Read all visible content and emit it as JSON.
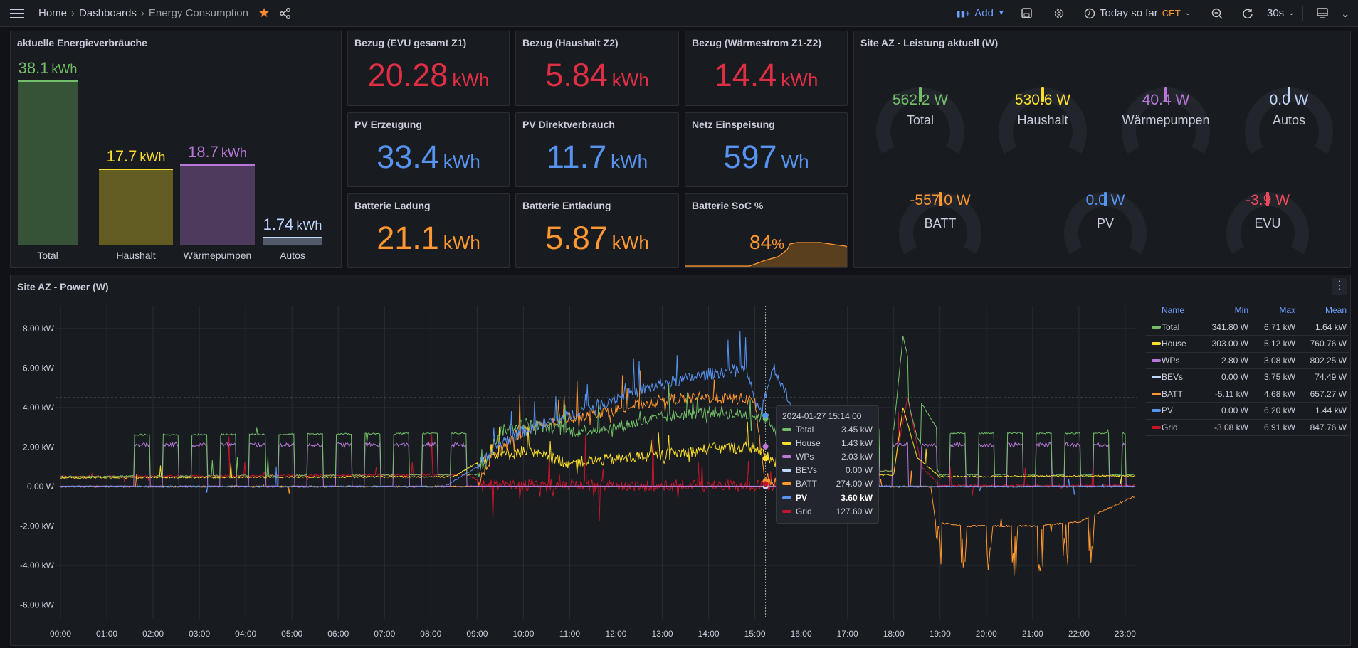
{
  "topbar": {
    "breadcrumb": [
      "Home",
      "Dashboards",
      "Energy Consumption"
    ],
    "add_label": "Add",
    "time_range": "Today so far",
    "timezone": "CET",
    "refresh": "30s"
  },
  "bar_panel": {
    "title": "aktuelle Energieverbräuche",
    "bars": [
      {
        "label": "Total",
        "value": "38.1",
        "unit": "kWh",
        "color": "#73bf69",
        "num": 38.1
      },
      {
        "label": "Haushalt",
        "value": "17.7",
        "unit": "kWh",
        "color": "#fade2a",
        "num": 17.7
      },
      {
        "label": "Wärmepumpen",
        "value": "18.7",
        "unit": "kWh",
        "color": "#b877d9",
        "num": 18.7
      },
      {
        "label": "Autos",
        "value": "1.74",
        "unit": "kWh",
        "color": "#c0d8ff",
        "num": 1.74
      }
    ],
    "max": 38.1
  },
  "stats": [
    {
      "title": "Bezug (EVU gesamt Z1)",
      "value": "20.28",
      "unit": "kWh",
      "color": "#e02f44"
    },
    {
      "title": "Bezug (Haushalt Z2)",
      "value": "5.84",
      "unit": "kWh",
      "color": "#e02f44"
    },
    {
      "title": "Bezug (Wärmestrom Z1-Z2)",
      "value": "14.4",
      "unit": "kWh",
      "color": "#e02f44"
    },
    {
      "title": "PV Erzeugung",
      "value": "33.4",
      "unit": "kWh",
      "color": "#5794f2"
    },
    {
      "title": "PV Direktverbrauch",
      "value": "11.7",
      "unit": "kWh",
      "color": "#5794f2"
    },
    {
      "title": "Netz Einspeisung",
      "value": "597",
      "unit": "Wh",
      "color": "#5794f2"
    },
    {
      "title": "Batterie Ladung",
      "value": "21.1",
      "unit": "kWh",
      "color": "#ff9830"
    },
    {
      "title": "Batterie Entladung",
      "value": "5.87",
      "unit": "kWh",
      "color": "#ff9830"
    },
    {
      "title": "Batterie SoC %",
      "value": "84",
      "unit": "%",
      "color": "#ff9830"
    }
  ],
  "gauge_panel": {
    "title": "Site AZ - Leistung aktuell (W)",
    "gauges": [
      {
        "name": "Total",
        "value": "562.2 W",
        "color": "#73bf69"
      },
      {
        "name": "Haushalt",
        "value": "530.6 W",
        "color": "#fade2a"
      },
      {
        "name": "Wärmepumpen",
        "value": "40.4 W",
        "color": "#b877d9"
      },
      {
        "name": "Autos",
        "value": "0.0 W",
        "color": "#c0d8ff"
      },
      {
        "name": "BATT",
        "value": "-557.0 W",
        "color": "#ff9830"
      },
      {
        "name": "PV",
        "value": "0.0 W",
        "color": "#5794f2"
      },
      {
        "name": "EVU",
        "value": "-3.9 W",
        "color": "#f2495c"
      }
    ]
  },
  "chart_data": {
    "type": "line",
    "title": "Site AZ - Power (W)",
    "x_ticks": [
      "00:00",
      "01:00",
      "02:00",
      "03:00",
      "04:00",
      "05:00",
      "06:00",
      "07:00",
      "08:00",
      "09:00",
      "10:00",
      "11:00",
      "12:00",
      "13:00",
      "14:00",
      "15:00",
      "16:00",
      "17:00",
      "18:00",
      "19:00",
      "20:00",
      "21:00",
      "22:00",
      "23:00"
    ],
    "y_ticks": [
      {
        "v": 8,
        "label": "8.00 kW"
      },
      {
        "v": 6,
        "label": "6.00 kW"
      },
      {
        "v": 4,
        "label": "4.00 kW"
      },
      {
        "v": 2,
        "label": "2.00 kW"
      },
      {
        "v": 0,
        "label": "0.00 W"
      },
      {
        "v": -2,
        "label": "-2.00 kW"
      },
      {
        "v": -4,
        "label": "-4.00 kW"
      },
      {
        "v": -6,
        "label": "-6.00 kW"
      }
    ],
    "xlim": [
      0,
      23.25
    ],
    "ylim": [
      -6.8,
      9.2
    ],
    "threshold_kw": 4.5,
    "cursor_hour": 15.23,
    "legend_headers": [
      "Name",
      "Min",
      "Max",
      "Mean"
    ],
    "series": [
      {
        "name": "Total",
        "color": "#73bf69",
        "min": "341.80 W",
        "max": "6.71 kW",
        "mean": "1.64 kW",
        "tooltip": "3.45 kW",
        "points": [
          [
            0,
            0.5
          ],
          [
            9,
            0.6
          ],
          [
            9.5,
            2.8
          ],
          [
            10,
            3.2
          ],
          [
            11,
            2.8
          ],
          [
            12,
            3.0
          ],
          [
            13,
            3.5
          ],
          [
            14,
            3.8
          ],
          [
            15,
            3.6
          ],
          [
            15.3,
            3.4
          ],
          [
            16,
            0.6
          ],
          [
            18,
            0.8
          ],
          [
            18.2,
            5.5
          ],
          [
            18.5,
            2.5
          ],
          [
            19,
            0.6
          ],
          [
            23.2,
            0.6
          ]
        ]
      },
      {
        "name": "House",
        "color": "#fade2a",
        "min": "303.00 W",
        "max": "5.12 kW",
        "mean": "760.76 W",
        "tooltip": "1.43 kW",
        "points": [
          [
            0,
            0.45
          ],
          [
            8.5,
            0.5
          ],
          [
            9.2,
            1.5
          ],
          [
            10,
            1.8
          ],
          [
            11,
            1.2
          ],
          [
            12,
            1.4
          ],
          [
            13,
            1.6
          ],
          [
            14,
            1.9
          ],
          [
            15,
            2.0
          ],
          [
            15.3,
            1.4
          ],
          [
            16,
            0.5
          ],
          [
            18,
            0.6
          ],
          [
            18.2,
            4.0
          ],
          [
            18.5,
            1.5
          ],
          [
            19,
            0.5
          ],
          [
            23.2,
            0.55
          ]
        ]
      },
      {
        "name": "WPs",
        "color": "#b877d9",
        "min": "2.80 W",
        "max": "3.08 kW",
        "mean": "802.25 W",
        "tooltip": "2.03 kW",
        "points": [
          [
            0,
            0.02
          ],
          [
            23.2,
            0.02
          ]
        ],
        "pulses": {
          "ranges": [
            [
              1.6,
              9.0
            ],
            [
              16.1,
              23.0
            ]
          ],
          "period": 0.62,
          "on": 0.34,
          "height": 2.1
        }
      },
      {
        "name": "BEVs",
        "color": "#c0d8ff",
        "min": "0.00 W",
        "max": "3.75 kW",
        "mean": "74.49 W",
        "tooltip": "0.00 W",
        "points": [
          [
            0,
            0
          ],
          [
            23.2,
            0
          ]
        ]
      },
      {
        "name": "BATT",
        "color": "#ff9830",
        "min": "-5.11 kW",
        "max": "4.68 kW",
        "mean": "657.27 W",
        "tooltip": "274.00 W",
        "points": [
          [
            0,
            0
          ],
          [
            9,
            0
          ],
          [
            9.3,
            1.5
          ],
          [
            10,
            2.8
          ],
          [
            11,
            3.5
          ],
          [
            12,
            3.9
          ],
          [
            13,
            4.4
          ],
          [
            14,
            4.5
          ],
          [
            15,
            4.4
          ],
          [
            15.2,
            0.3
          ],
          [
            16,
            0
          ],
          [
            18.8,
            0
          ],
          [
            18.9,
            -1.8
          ],
          [
            19.5,
            -2.0
          ],
          [
            21,
            -2.0
          ],
          [
            22,
            -1.8
          ],
          [
            23.2,
            -0.5
          ]
        ]
      },
      {
        "name": "PV",
        "color": "#5794f2",
        "min": "0.00 W",
        "max": "6.20 kW",
        "mean": "1.44 kW",
        "tooltip": "3.60 kW",
        "bold": true,
        "points": [
          [
            0,
            0
          ],
          [
            8.3,
            0
          ],
          [
            9,
            1.0
          ],
          [
            9.5,
            2.2
          ],
          [
            10,
            2.8
          ],
          [
            11,
            3.6
          ],
          [
            12,
            4.5
          ],
          [
            13,
            5.2
          ],
          [
            14,
            5.7
          ],
          [
            14.8,
            6.0
          ],
          [
            15.1,
            3.6
          ],
          [
            15.4,
            6.1
          ],
          [
            15.8,
            4.0
          ],
          [
            16.3,
            1.0
          ],
          [
            17,
            0.1
          ],
          [
            18,
            0
          ],
          [
            23.2,
            0
          ]
        ]
      },
      {
        "name": "Grid",
        "color": "#c4162a",
        "min": "-3.08 kW",
        "max": "6.91 kW",
        "mean": "847.76 W",
        "tooltip": "127.60 W",
        "points": [
          [
            0,
            0.5
          ],
          [
            8.8,
            0.6
          ],
          [
            9.2,
            0.05
          ],
          [
            16,
            0.05
          ],
          [
            16.2,
            0.5
          ],
          [
            18,
            0.8
          ],
          [
            18.3,
            4.5
          ],
          [
            18.6,
            1.0
          ],
          [
            19,
            0.05
          ],
          [
            23.2,
            0.05
          ]
        ]
      }
    ],
    "tooltip_time": "2024-01-27 15:14:00"
  }
}
